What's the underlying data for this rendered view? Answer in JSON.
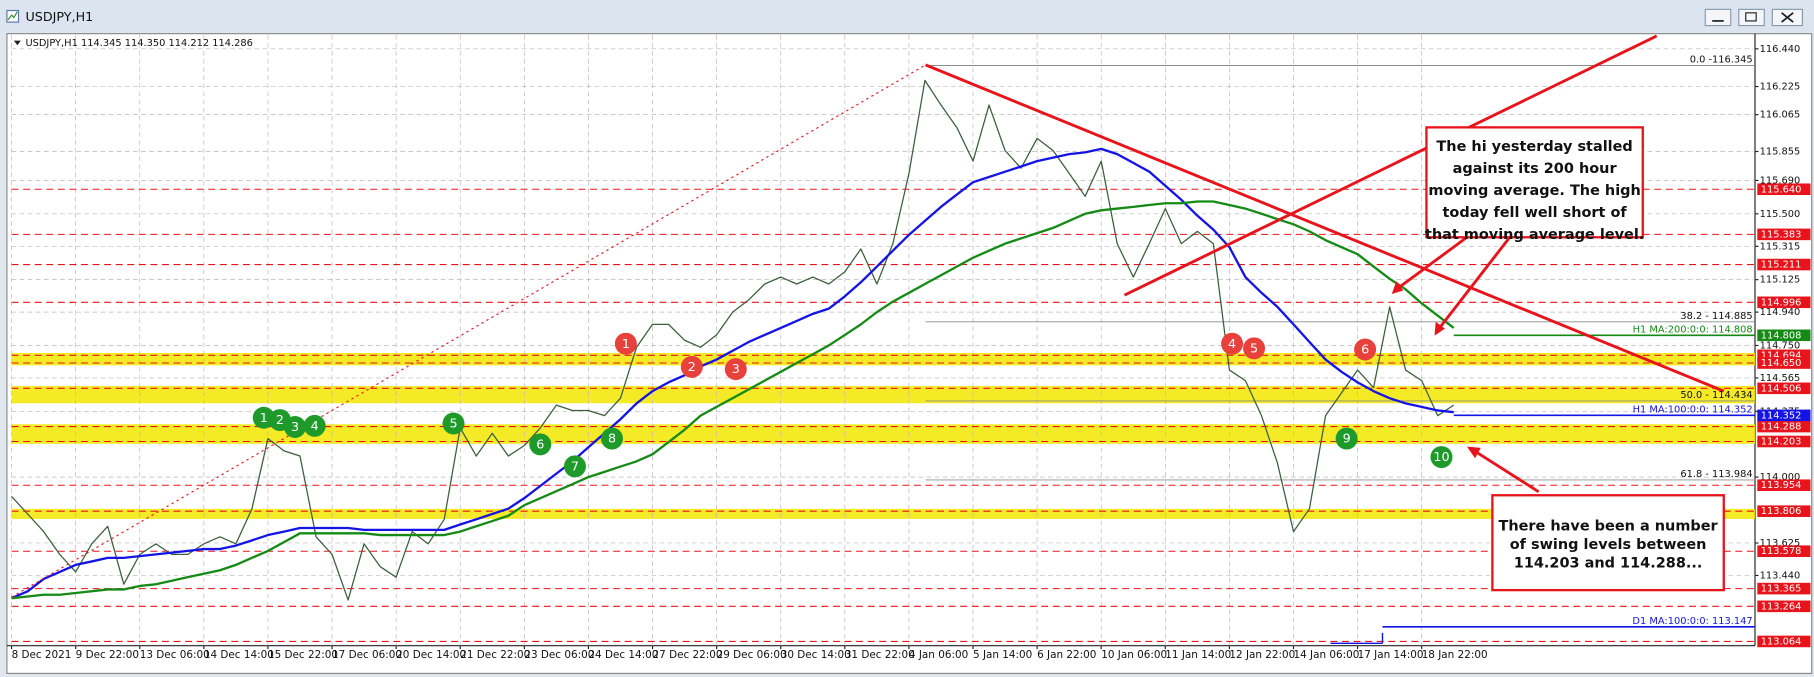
{
  "window_title": "USDJPY,H1",
  "chart_data": {
    "type": "line",
    "header": "USDJPY,H1 114.345 114.350 114.212 114.286",
    "categories": [
      "8 Dec 2021",
      null,
      null,
      null,
      "9 Dec 22:00",
      null,
      null,
      null,
      "13 Dec 06:00",
      null,
      null,
      null,
      "14 Dec 14:00",
      null,
      null,
      null,
      "15 Dec 22:00",
      null,
      null,
      null,
      "17 Dec 06:00",
      null,
      null,
      null,
      "20 Dec 14:00",
      null,
      null,
      null,
      "21 Dec 22:00",
      null,
      null,
      null,
      "23 Dec 06:00",
      null,
      null,
      null,
      "24 Dec 14:00",
      null,
      null,
      null,
      "27 Dec 22:00",
      null,
      null,
      null,
      "29 Dec 06:00",
      null,
      null,
      null,
      "30 Dec 14:00",
      null,
      null,
      null,
      "31 Dec 22:00",
      null,
      null,
      null,
      "4 Jan 06:00",
      null,
      null,
      null,
      "5 Jan 14:00",
      null,
      null,
      null,
      "6 Jan 22:00",
      null,
      null,
      null,
      "10 Jan 06:00",
      null,
      null,
      null,
      "11 Jan 14:00",
      null,
      null,
      null,
      "12 Jan 22:00",
      null,
      null,
      null,
      "14 Jan 06:00",
      null,
      null,
      null,
      "17 Jan 14:00",
      null,
      null,
      null,
      "18 Jan 22:00",
      null,
      null,
      null,
      null,
      null,
      null,
      null,
      null,
      null,
      null,
      null,
      null,
      null,
      null,
      null,
      null,
      null,
      null,
      null,
      null
    ],
    "series": [
      {
        "color": "#3d5f3d",
        "values": [
          113.89,
          113.79,
          113.69,
          113.56,
          113.46,
          113.62,
          113.72,
          113.39,
          113.56,
          113.62,
          113.56,
          113.56,
          113.62,
          113.66,
          113.62,
          113.82,
          114.22,
          114.15,
          114.12,
          113.66,
          113.56,
          113.3,
          113.62,
          113.49,
          113.43,
          113.69,
          113.62,
          113.76,
          114.28,
          114.12,
          114.25,
          114.12,
          114.18,
          114.28,
          114.41,
          114.38,
          114.38,
          114.35,
          114.45,
          114.74,
          114.87,
          114.87,
          114.78,
          114.74,
          114.81,
          114.94,
          115.01,
          115.1,
          115.14,
          115.1,
          115.14,
          115.1,
          115.17,
          115.3,
          115.1,
          115.33,
          115.73,
          116.26,
          116.12,
          115.99,
          115.8,
          116.12,
          115.86,
          115.76,
          115.93,
          115.86,
          115.73,
          115.6,
          115.8,
          115.33,
          115.14,
          115.33,
          115.53,
          115.33,
          115.4,
          115.33,
          114.61,
          114.55,
          114.35,
          114.08,
          113.69,
          113.82,
          114.35,
          114.48,
          114.61,
          114.51,
          114.97,
          114.61,
          114.55,
          114.35,
          114.41,
          null,
          null,
          null,
          null,
          null,
          null,
          null,
          null,
          null,
          null,
          null,
          null,
          null,
          null,
          null,
          null,
          null,
          null
        ]
      },
      {
        "color": "#1414e6",
        "values": [
          113.31,
          113.35,
          113.42,
          113.46,
          113.5,
          113.52,
          113.54,
          113.54,
          113.55,
          113.56,
          113.57,
          113.58,
          113.59,
          113.59,
          113.61,
          113.64,
          113.67,
          113.69,
          113.71,
          113.71,
          113.71,
          113.71,
          113.7,
          113.7,
          113.7,
          113.7,
          113.7,
          113.7,
          113.73,
          113.76,
          113.79,
          113.82,
          113.88,
          113.95,
          114.02,
          114.09,
          114.17,
          114.25,
          114.33,
          114.42,
          114.49,
          114.54,
          114.58,
          114.63,
          114.67,
          114.72,
          114.77,
          114.81,
          114.85,
          114.89,
          114.93,
          114.96,
          115.03,
          115.11,
          115.2,
          115.29,
          115.38,
          115.46,
          115.54,
          115.61,
          115.68,
          115.71,
          115.74,
          115.77,
          115.8,
          115.82,
          115.84,
          115.85,
          115.87,
          115.84,
          115.79,
          115.74,
          115.66,
          115.58,
          115.49,
          115.41,
          115.31,
          115.14,
          115.05,
          114.97,
          114.87,
          114.77,
          114.67,
          114.6,
          114.54,
          114.49,
          114.45,
          114.42,
          114.4,
          114.38,
          114.37,
          null,
          null,
          null,
          null,
          null,
          null,
          null,
          null,
          null,
          null,
          null,
          null,
          null,
          null,
          null,
          null,
          null,
          null
        ]
      },
      {
        "color": "#158a15",
        "values": [
          113.31,
          113.32,
          113.33,
          113.33,
          113.34,
          113.35,
          113.36,
          113.36,
          113.38,
          113.39,
          113.41,
          113.43,
          113.45,
          113.47,
          113.5,
          113.54,
          113.58,
          113.63,
          113.68,
          113.68,
          113.68,
          113.68,
          113.68,
          113.67,
          113.67,
          113.67,
          113.67,
          113.67,
          113.69,
          113.72,
          113.75,
          113.78,
          113.84,
          113.88,
          113.92,
          113.96,
          114.0,
          114.03,
          114.06,
          114.09,
          114.13,
          114.2,
          114.27,
          114.35,
          114.4,
          114.45,
          114.5,
          114.55,
          114.6,
          114.65,
          114.7,
          114.75,
          114.81,
          114.87,
          114.94,
          115.0,
          115.05,
          115.1,
          115.15,
          115.2,
          115.25,
          115.29,
          115.33,
          115.36,
          115.39,
          115.42,
          115.46,
          115.5,
          115.52,
          115.53,
          115.54,
          115.55,
          115.56,
          115.56,
          115.57,
          115.57,
          115.55,
          115.53,
          115.5,
          115.47,
          115.44,
          115.4,
          115.35,
          115.31,
          115.27,
          115.2,
          115.13,
          115.07,
          114.99,
          114.92,
          114.85,
          null,
          null,
          null,
          null,
          null,
          null,
          null,
          null,
          null,
          null,
          null,
          null,
          null,
          null,
          null,
          null,
          null,
          null
        ]
      }
    ],
    "ylim": [
      113.04,
      116.5
    ],
    "yticks": [
      {
        "value": 116.44,
        "label": "116.440"
      },
      {
        "value": 116.225,
        "label": "116.225"
      },
      {
        "value": 116.065,
        "label": "116.065"
      },
      {
        "value": 115.855,
        "label": "115.855"
      },
      {
        "value": 115.69,
        "label": "115.690"
      },
      {
        "value": 115.5,
        "label": "115.500"
      },
      {
        "value": 115.315,
        "label": "115.315"
      },
      {
        "value": 115.125,
        "label": "115.125"
      },
      {
        "value": 114.94,
        "label": "114.940"
      },
      {
        "value": 114.75,
        "label": "114.750"
      },
      {
        "value": 114.565,
        "label": "114.565"
      },
      {
        "value": 114.375,
        "label": "114.375"
      },
      {
        "value": 114.0,
        "label": "114.000"
      },
      {
        "value": 113.625,
        "label": "113.625"
      },
      {
        "value": 113.44,
        "label": "113.440"
      }
    ],
    "grid": true,
    "levels": [
      {
        "value": 115.64,
        "label": "115.640"
      },
      {
        "value": 115.383,
        "label": "115.383"
      },
      {
        "value": 115.211,
        "label": "115.211"
      },
      {
        "value": 114.996,
        "label": "114.996"
      },
      {
        "value": 114.694,
        "label": "114.694"
      },
      {
        "value": 114.65,
        "label": "114.650"
      },
      {
        "value": 114.506,
        "label": "114.506"
      },
      {
        "value": 114.288,
        "label": "114.288"
      },
      {
        "value": 114.203,
        "label": "114.203"
      },
      {
        "value": 113.954,
        "label": "113.954"
      },
      {
        "value": 113.806,
        "label": "113.806"
      },
      {
        "value": 113.578,
        "label": "113.578"
      },
      {
        "value": 113.365,
        "label": "113.365"
      },
      {
        "value": 113.264,
        "label": "113.264"
      },
      {
        "value": 113.064,
        "label": "113.064"
      }
    ],
    "level_color": "#e8141c",
    "bands": [
      [
        114.65,
        114.694
      ],
      [
        114.434,
        114.506
      ],
      [
        114.203,
        114.288
      ],
      [
        113.775,
        113.806
      ]
    ],
    "band_color": "#f2e600",
    "ma_levels": [
      {
        "value": 114.808,
        "label": "114.808",
        "text": "H1 MA:200:0:0: 114.808",
        "color": "#158a15"
      },
      {
        "value": 114.352,
        "label": "114.352",
        "text": "H1 MA:100:0:0: 114.352",
        "color": "#1414e6"
      },
      {
        "value": 113.147,
        "text": "D1 MA:100:0:0: 113.147",
        "color": "#1414e6"
      }
    ],
    "fib_levels": [
      {
        "value": 116.345,
        "label": "0.0 -116.345"
      },
      {
        "value": 114.885,
        "label": "38.2 - 114.885"
      },
      {
        "value": 114.434,
        "label": "50.0 - 114.434"
      },
      {
        "value": 113.984,
        "label": "61.8 - 113.984"
      }
    ],
    "red_markers": [
      "1",
      "2",
      "3",
      "4",
      "5",
      "6"
    ],
    "green_markers": [
      "1",
      "2",
      "3",
      "4",
      "5",
      "6",
      "7",
      "8",
      "9",
      "10"
    ],
    "callouts": [
      [
        "The hi yesterday stalled",
        "against its 200 hour",
        "moving average. The high",
        "today fell well short of",
        "that moving average level."
      ],
      [
        "There have been a number",
        "of swing levels between",
        "114.203 and 114.288..."
      ]
    ]
  }
}
